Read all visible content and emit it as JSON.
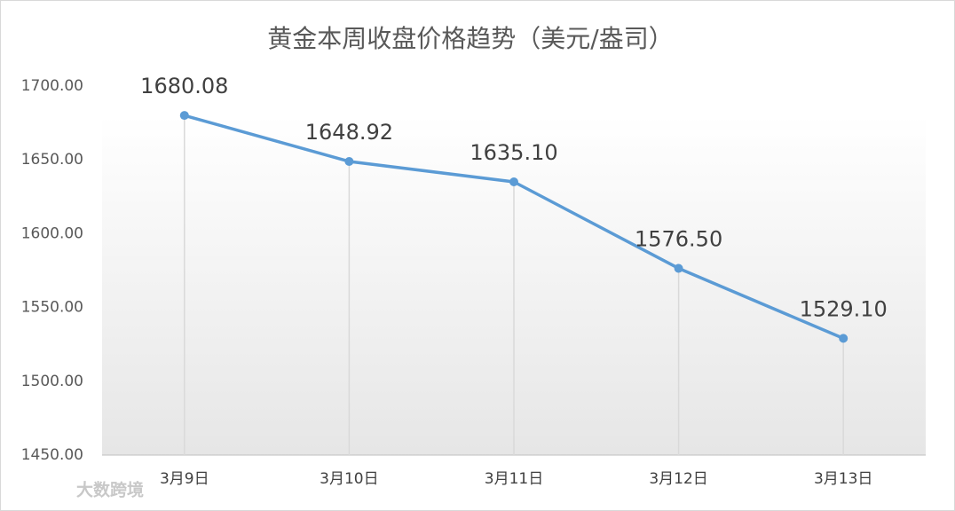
{
  "chart_data": {
    "type": "line",
    "title": "黄金本周收盘价格趋势（美元/盎司）",
    "categories": [
      "3月9日",
      "3月10日",
      "3月11日",
      "3月12日",
      "3月13日"
    ],
    "series": [
      {
        "name": "收盘价格",
        "color": "#5b9bd5",
        "values": [
          1680.08,
          1648.92,
          1635.1,
          1576.5,
          1529.1
        ],
        "value_labels": [
          "1680.08",
          "1648.92",
          "1635.10",
          "1576.50",
          "1529.10"
        ]
      }
    ],
    "ylim": [
      1450,
      1700
    ],
    "yticks": [
      {
        "value": 1450,
        "label": "1450.00"
      },
      {
        "value": 1500,
        "label": "1500.00"
      },
      {
        "value": 1550,
        "label": "1550.00"
      },
      {
        "value": 1600,
        "label": "1600.00"
      },
      {
        "value": 1650,
        "label": "1650.00"
      },
      {
        "value": 1700,
        "label": "1700.00"
      }
    ],
    "watermark": "大数跨境"
  }
}
